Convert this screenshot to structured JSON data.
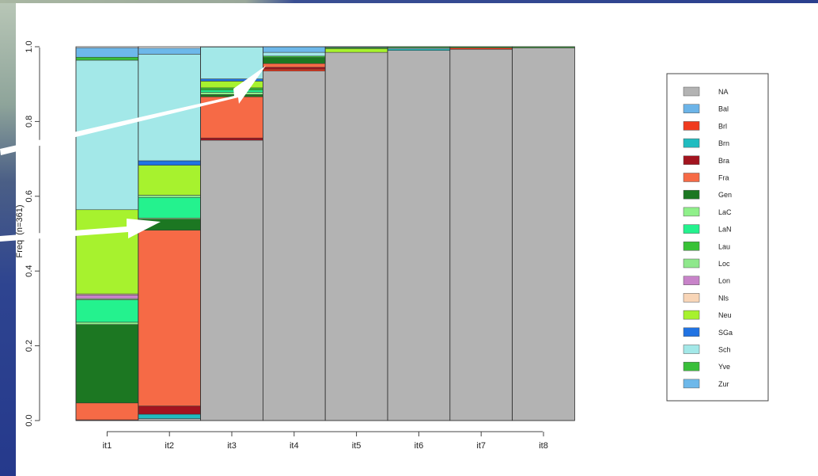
{
  "colors": {
    "background_left": "#3043a0",
    "arrow": "#ffffff"
  },
  "axes": {
    "ylabel": "Freq. (n=361)",
    "yticks": [
      "0.0",
      "0.2",
      "0.4",
      "0.6",
      "0.8",
      "1.0"
    ]
  },
  "chart_data": {
    "type": "bar",
    "stacked": true,
    "categories": [
      "it1",
      "it2",
      "it3",
      "it4",
      "it5",
      "it6",
      "it7",
      "it8"
    ],
    "ylim": [
      0,
      1
    ],
    "xlabel": "",
    "ylabel": "Freq. (n=361)",
    "legend_position": "right",
    "series": [
      {
        "name": "NA",
        "color": "#b3b3b3",
        "values": [
          0,
          0.005,
          0.75,
          0.935,
          0.985,
          0.99,
          0.993,
          0.997
        ]
      },
      {
        "name": "Bal",
        "color": "#6cb4e8",
        "values": [
          0,
          0,
          0,
          0,
          0,
          0,
          0,
          0
        ]
      },
      {
        "name": "Brl",
        "color": "#f03a1e",
        "values": [
          0,
          0,
          0,
          0.005,
          0,
          0,
          0.004,
          0
        ]
      },
      {
        "name": "Brn",
        "color": "#21bcc0",
        "values": [
          0,
          0.012,
          0,
          0,
          0,
          0.004,
          0,
          0
        ]
      },
      {
        "name": "Bra",
        "color": "#a3141f",
        "values": [
          0.002,
          0.022,
          0.006,
          0.005,
          0,
          0,
          0,
          0
        ]
      },
      {
        "name": "Fra",
        "color": "#f66a46",
        "values": [
          0.045,
          0.47,
          0.11,
          0.01,
          0,
          0,
          0,
          0
        ]
      },
      {
        "name": "Gen",
        "color": "#1c7722",
        "values": [
          0.21,
          0.03,
          0.006,
          0.016,
          0,
          0,
          0,
          0
        ]
      },
      {
        "name": "LaC",
        "color": "#8ff08a",
        "values": [
          0.006,
          0.003,
          0.006,
          0,
          0,
          0,
          0,
          0
        ]
      },
      {
        "name": "LaN",
        "color": "#24f28e",
        "values": [
          0.06,
          0.055,
          0.006,
          0,
          0,
          0,
          0,
          0
        ]
      },
      {
        "name": "Lau",
        "color": "#38c236",
        "values": [
          0,
          0,
          0.006,
          0.004,
          0,
          0,
          0,
          0
        ]
      },
      {
        "name": "Loc",
        "color": "#8fe88c",
        "values": [
          0.003,
          0.006,
          0,
          0,
          0,
          0,
          0,
          0
        ]
      },
      {
        "name": "Lon",
        "color": "#c883c9",
        "values": [
          0.01,
          0,
          0,
          0,
          0,
          0,
          0,
          0
        ]
      },
      {
        "name": "Nls",
        "color": "#f8d5b7",
        "values": [
          0.003,
          0,
          0,
          0,
          0,
          0,
          0,
          0
        ]
      },
      {
        "name": "Neu",
        "color": "#a7f22e",
        "values": [
          0.225,
          0.08,
          0.018,
          0,
          0.01,
          0,
          0,
          0
        ]
      },
      {
        "name": "SGa",
        "color": "#2173e3",
        "values": [
          0,
          0.012,
          0.006,
          0,
          0,
          0,
          0,
          0
        ]
      },
      {
        "name": "Sch",
        "color": "#a3e8e8",
        "values": [
          0.4,
          0.285,
          0.085,
          0.01,
          0,
          0.003,
          0,
          0
        ]
      },
      {
        "name": "Yve",
        "color": "#39bf3a",
        "values": [
          0.008,
          0,
          0,
          0,
          0.003,
          0.003,
          0.003,
          0.003
        ]
      },
      {
        "name": "Zur",
        "color": "#6db8ea",
        "values": [
          0.025,
          0.016,
          0,
          0.015,
          0.002,
          0,
          0,
          0
        ]
      }
    ]
  }
}
